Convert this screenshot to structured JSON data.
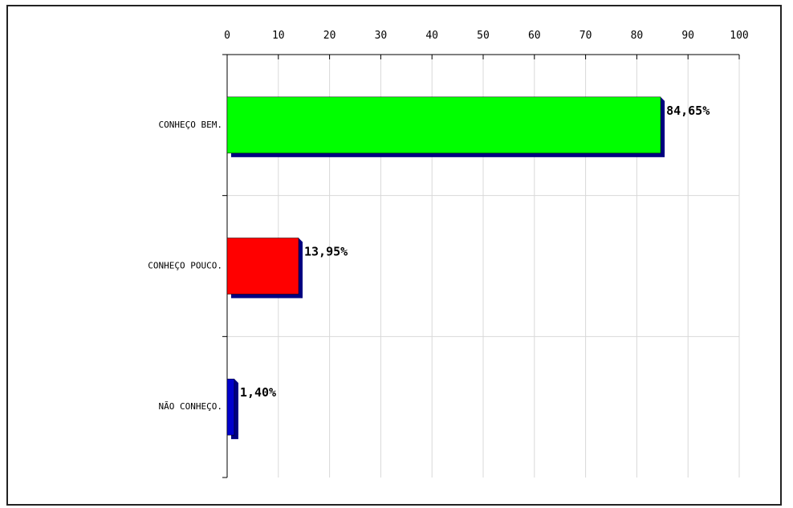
{
  "chart_data": {
    "type": "bar",
    "orientation": "horizontal",
    "categories": [
      "CONHEÇO BEM.",
      "CONHEÇO POUCO.",
      "NÃO CONHEÇO."
    ],
    "values": [
      84.65,
      13.95,
      1.4
    ],
    "data_labels": [
      "84,65%",
      "13,95%",
      "1,40%"
    ],
    "colors": [
      "#00ff00",
      "#ff0000",
      "#0000cc"
    ],
    "shadow_color": "#000080",
    "x_ticks": [
      "0",
      "10",
      "20",
      "30",
      "40",
      "50",
      "60",
      "70",
      "80",
      "90",
      "100"
    ],
    "xlim": [
      0,
      100
    ],
    "x_axis_position": "top",
    "grid": true,
    "title": "",
    "xlabel": "",
    "ylabel": ""
  }
}
